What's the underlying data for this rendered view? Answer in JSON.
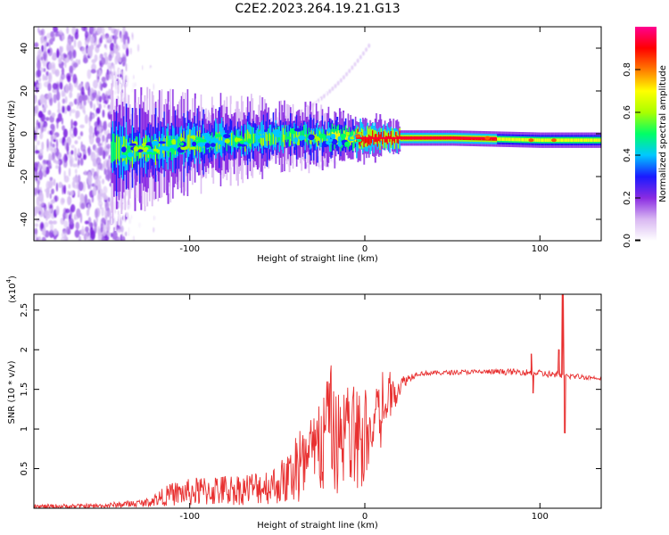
{
  "title": "C2E2.2023.264.19.21.G13",
  "chart_data": [
    {
      "type": "heatmap",
      "xlabel": "Height of straight line (km)",
      "ylabel": "Frequency (Hz)",
      "xlim": [
        -189,
        135
      ],
      "ylim": [
        -50,
        50
      ],
      "x_ticks": [
        -100,
        0,
        100
      ],
      "y_ticks": [
        -40,
        -20,
        0,
        20,
        40
      ],
      "colorbar": {
        "label": "Normalized spectral amplitude",
        "range": [
          0,
          1
        ],
        "ticks": [
          "0.0",
          "0.2",
          "0.4",
          "0.6",
          "0.8"
        ],
        "colors": [
          "#ffffff",
          "#d9b8f2",
          "#8a2be2",
          "#1a1aff",
          "#00c8ff",
          "#00ff66",
          "#aaff00",
          "#ffff00",
          "#ff7a00",
          "#ff0000",
          "#ff0090"
        ]
      },
      "features": {
        "noise_region_x": [
          -189,
          -120
        ],
        "main_trace": [
          {
            "x": -145,
            "y": -8
          },
          {
            "x": -120,
            "y": -7
          },
          {
            "x": -100,
            "y": -4
          },
          {
            "x": -80,
            "y": -3
          },
          {
            "x": -60,
            "y": -2
          },
          {
            "x": -40,
            "y": -1
          },
          {
            "x": -20,
            "y": -2
          },
          {
            "x": 0,
            "y": -2
          },
          {
            "x": 50,
            "y": -2
          },
          {
            "x": 100,
            "y": -3
          },
          {
            "x": 135,
            "y": -3
          }
        ],
        "peak_region_x": [
          -5,
          75
        ]
      }
    },
    {
      "type": "line",
      "xlabel": "Height of straight line (km)",
      "ylabel": "SNR (10 * v/v)",
      "y_multiplier": "(x10",
      "y_multiplier_exp": "4",
      "xlim": [
        -189,
        135
      ],
      "ylim": [
        0,
        2.7
      ],
      "x_ticks": [
        -100,
        0,
        100
      ],
      "y_ticks": [
        "0.5",
        "1.0",
        "1.5",
        "2.0",
        "2.5"
      ],
      "y_tick_values": [
        0.5,
        1.0,
        1.5,
        2.0,
        2.5
      ],
      "color": "#e83030",
      "envelope": [
        {
          "x": -189,
          "mean": 0.02,
          "amp": 0.03
        },
        {
          "x": -150,
          "mean": 0.03,
          "amp": 0.03
        },
        {
          "x": -125,
          "mean": 0.07,
          "amp": 0.05
        },
        {
          "x": -110,
          "mean": 0.18,
          "amp": 0.15
        },
        {
          "x": -90,
          "mean": 0.22,
          "amp": 0.2
        },
        {
          "x": -70,
          "mean": 0.24,
          "amp": 0.2
        },
        {
          "x": -50,
          "mean": 0.3,
          "amp": 0.25
        },
        {
          "x": -35,
          "mean": 0.5,
          "amp": 0.5
        },
        {
          "x": -20,
          "mean": 0.9,
          "amp": 0.7
        },
        {
          "x": -10,
          "mean": 0.75,
          "amp": 0.6
        },
        {
          "x": 0,
          "mean": 0.8,
          "amp": 0.55
        },
        {
          "x": 8,
          "mean": 1.1,
          "amp": 0.45
        },
        {
          "x": 15,
          "mean": 1.4,
          "amp": 0.25
        },
        {
          "x": 22,
          "mean": 1.6,
          "amp": 0.08
        },
        {
          "x": 30,
          "mean": 1.7,
          "amp": 0.03
        },
        {
          "x": 60,
          "mean": 1.72,
          "amp": 0.03
        },
        {
          "x": 90,
          "mean": 1.72,
          "amp": 0.04
        },
        {
          "x": 110,
          "mean": 1.68,
          "amp": 0.05
        },
        {
          "x": 135,
          "mean": 1.64,
          "amp": 0.02
        }
      ],
      "spikes": [
        {
          "x": 95,
          "y": 1.95
        },
        {
          "x": 96,
          "y": 1.45
        },
        {
          "x": 113,
          "y": 2.7
        },
        {
          "x": 114,
          "y": 0.95
        },
        {
          "x": 111,
          "y": 2.0
        }
      ]
    }
  ]
}
